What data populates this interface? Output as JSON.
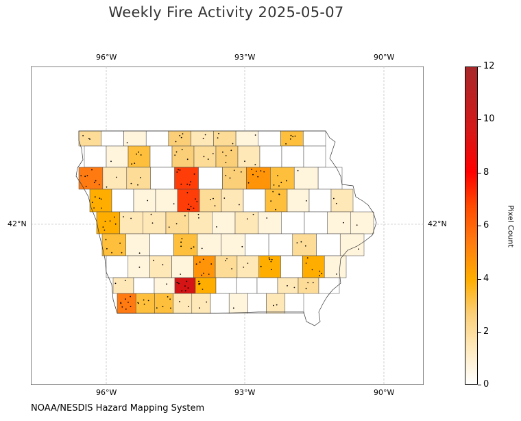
{
  "title": "Weekly Fire Activity 2025-05-07",
  "credit": "NOAA/NESDIS Hazard Mapping System",
  "map": {
    "lon_labels": [
      "96°W",
      "93°W",
      "90°W"
    ],
    "lat_label": "42°N",
    "grid": true
  },
  "colorbar": {
    "label": "Pixel Count",
    "range": [
      0,
      12
    ],
    "ticks": [
      "0",
      "2",
      "4",
      "6",
      "8",
      "10",
      "12"
    ],
    "colors": [
      "#ffffff",
      "#ffe8b8",
      "#fbcf78",
      "#ffae00",
      "#ff7a10",
      "#ff0000",
      "#a8282a"
    ]
  },
  "counties": [
    [
      3,
      0,
      1,
      0,
      4,
      2,
      3,
      1,
      0,
      5,
      0
    ],
    [
      0,
      1,
      5,
      0,
      4,
      3,
      4,
      2,
      0,
      0,
      0
    ],
    [
      8,
      2,
      3,
      0,
      9,
      0,
      4,
      7,
      5,
      1,
      0
    ],
    [
      6,
      0,
      1,
      1,
      9,
      3,
      2,
      0,
      5,
      1,
      0,
      2
    ],
    [
      6,
      2,
      2,
      3,
      2,
      1,
      2,
      1,
      0,
      0,
      1,
      1
    ],
    [
      5,
      1,
      0,
      5,
      1,
      1,
      0,
      0,
      3,
      0,
      1
    ],
    [
      0,
      1,
      2,
      1,
      7,
      3,
      2,
      6,
      0,
      6,
      1
    ],
    [
      2,
      0,
      1,
      11,
      6,
      0,
      0,
      0,
      2,
      3,
      0
    ],
    [
      8,
      5,
      5,
      2,
      2,
      0,
      1,
      0,
      2,
      0
    ]
  ]
}
